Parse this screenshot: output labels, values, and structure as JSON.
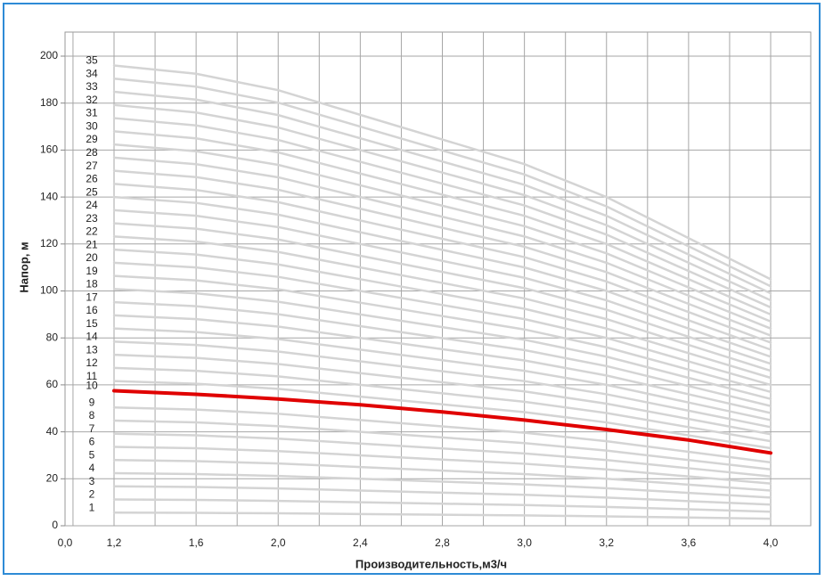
{
  "chart_data": {
    "type": "line",
    "x_label": "Производительность,м3/ч",
    "y_label": "Напор, м",
    "categories": [
      "0,0",
      "1,2",
      "1,6",
      "2,0",
      "2,4",
      "2,8",
      "3,0",
      "3,2",
      "3,6",
      "4,0"
    ],
    "ylim": [
      0,
      200
    ],
    "yticks": [
      0,
      20,
      40,
      60,
      80,
      100,
      120,
      140,
      160,
      180,
      200
    ],
    "grid": true,
    "series": [
      {
        "name": "1",
        "color": "#d4d4d4",
        "values": [
          null,
          5.6,
          5.5,
          5.3,
          5,
          4.7,
          4.4,
          4,
          3.5,
          3
        ]
      },
      {
        "name": "2",
        "color": "#d4d4d4",
        "values": [
          null,
          11.2,
          11,
          10.6,
          10,
          9.4,
          8.8,
          8,
          7,
          6
        ]
      },
      {
        "name": "3",
        "color": "#d4d4d4",
        "values": [
          null,
          16.8,
          16.5,
          15.9,
          15,
          14.1,
          13.2,
          12,
          10.5,
          9
        ]
      },
      {
        "name": "4",
        "color": "#d4d4d4",
        "values": [
          null,
          22.4,
          22,
          21.2,
          20,
          18.8,
          17.6,
          16,
          14,
          12
        ]
      },
      {
        "name": "5",
        "color": "#d4d4d4",
        "values": [
          null,
          28,
          27.5,
          26.5,
          25,
          23.5,
          22,
          20,
          17.5,
          15
        ]
      },
      {
        "name": "6",
        "color": "#d4d4d4",
        "values": [
          null,
          33.6,
          33,
          31.8,
          30,
          28.2,
          26.4,
          24,
          21,
          18
        ]
      },
      {
        "name": "7",
        "color": "#d4d4d4",
        "values": [
          null,
          39.2,
          38.5,
          37.1,
          35,
          32.9,
          30.8,
          28,
          24.5,
          21
        ]
      },
      {
        "name": "8",
        "color": "#d4d4d4",
        "values": [
          null,
          44.8,
          44,
          42.4,
          40,
          37.6,
          35.2,
          32,
          28,
          24
        ]
      },
      {
        "name": "9",
        "color": "#d4d4d4",
        "values": [
          null,
          50.4,
          49.5,
          47.7,
          45,
          42.3,
          39.6,
          36,
          31.5,
          27
        ]
      },
      {
        "name": "10",
        "color": "#e00000",
        "values": [
          null,
          57.5,
          56,
          54,
          51.5,
          48.5,
          45,
          41,
          36.5,
          31
        ]
      },
      {
        "name": "11",
        "color": "#d4d4d4",
        "values": [
          null,
          61.6,
          60.5,
          58.3,
          55,
          51.7,
          48.4,
          44,
          38.5,
          33
        ]
      },
      {
        "name": "12",
        "color": "#d4d4d4",
        "values": [
          null,
          67.2,
          66,
          63.6,
          60,
          56.4,
          52.8,
          48,
          42,
          36
        ]
      },
      {
        "name": "13",
        "color": "#d4d4d4",
        "values": [
          null,
          72.8,
          71.5,
          68.9,
          65,
          61.1,
          57.2,
          52,
          45.5,
          39
        ]
      },
      {
        "name": "14",
        "color": "#d4d4d4",
        "values": [
          null,
          78.4,
          77,
          74.2,
          70,
          65.8,
          61.6,
          56,
          49,
          42
        ]
      },
      {
        "name": "15",
        "color": "#d4d4d4",
        "values": [
          null,
          84,
          82.5,
          79.5,
          75,
          70.5,
          66,
          60,
          52.5,
          45
        ]
      },
      {
        "name": "16",
        "color": "#d4d4d4",
        "values": [
          null,
          89.6,
          88,
          84.8,
          80,
          75.2,
          70.4,
          64,
          56,
          48
        ]
      },
      {
        "name": "17",
        "color": "#d4d4d4",
        "values": [
          null,
          95.2,
          93.5,
          90.1,
          85,
          79.9,
          74.8,
          68,
          59.5,
          51
        ]
      },
      {
        "name": "18",
        "color": "#d4d4d4",
        "values": [
          null,
          100.8,
          99,
          95.4,
          90,
          84.6,
          79.2,
          72,
          63,
          54
        ]
      },
      {
        "name": "19",
        "color": "#d4d4d4",
        "values": [
          null,
          106.4,
          104.5,
          100.7,
          95,
          89.3,
          83.6,
          76,
          66.5,
          57
        ]
      },
      {
        "name": "20",
        "color": "#d4d4d4",
        "values": [
          null,
          112,
          110,
          106,
          100,
          94,
          88,
          80,
          70,
          60
        ]
      },
      {
        "name": "21",
        "color": "#d4d4d4",
        "values": [
          null,
          117.6,
          115.5,
          111.3,
          105,
          98.7,
          92.4,
          84,
          73.5,
          63
        ]
      },
      {
        "name": "22",
        "color": "#d4d4d4",
        "values": [
          null,
          123.2,
          121,
          116.6,
          110,
          103.4,
          96.8,
          88,
          77,
          66
        ]
      },
      {
        "name": "23",
        "color": "#d4d4d4",
        "values": [
          null,
          128.8,
          126.5,
          121.9,
          115,
          108.1,
          101.2,
          92,
          80.5,
          69
        ]
      },
      {
        "name": "24",
        "color": "#d4d4d4",
        "values": [
          null,
          134.4,
          132,
          127.2,
          120,
          112.8,
          105.6,
          96,
          84,
          72
        ]
      },
      {
        "name": "25",
        "color": "#d4d4d4",
        "values": [
          null,
          140,
          137.5,
          132.5,
          125,
          117.5,
          110,
          100,
          87.5,
          75
        ]
      },
      {
        "name": "26",
        "color": "#d4d4d4",
        "values": [
          null,
          145.6,
          143,
          137.8,
          130,
          122.2,
          114.4,
          104,
          91,
          78
        ]
      },
      {
        "name": "27",
        "color": "#d4d4d4",
        "values": [
          null,
          151.2,
          148.5,
          143.1,
          135,
          126.9,
          118.8,
          108,
          94.5,
          81
        ]
      },
      {
        "name": "28",
        "color": "#d4d4d4",
        "values": [
          null,
          156.8,
          154,
          148.4,
          140,
          131.6,
          123.2,
          112,
          98,
          84
        ]
      },
      {
        "name": "29",
        "color": "#d4d4d4",
        "values": [
          null,
          162.4,
          159.5,
          153.7,
          145,
          136.3,
          127.6,
          116,
          101.5,
          87
        ]
      },
      {
        "name": "30",
        "color": "#d4d4d4",
        "values": [
          null,
          168,
          165,
          159,
          150,
          141,
          132,
          120,
          105,
          90
        ]
      },
      {
        "name": "31",
        "color": "#d4d4d4",
        "values": [
          null,
          173.6,
          170.5,
          164.3,
          155,
          145.7,
          136.4,
          124,
          108.5,
          93
        ]
      },
      {
        "name": "32",
        "color": "#d4d4d4",
        "values": [
          null,
          179.2,
          176,
          169.6,
          160,
          150.4,
          140.8,
          128,
          112,
          96
        ]
      },
      {
        "name": "33",
        "color": "#d4d4d4",
        "values": [
          null,
          184.8,
          181.5,
          174.9,
          165,
          155.1,
          145.2,
          132,
          115.5,
          99
        ]
      },
      {
        "name": "34",
        "color": "#d4d4d4",
        "values": [
          null,
          190.4,
          187,
          180.2,
          170,
          159.8,
          149.6,
          136,
          119,
          102
        ]
      },
      {
        "name": "35",
        "color": "#d4d4d4",
        "values": [
          null,
          196,
          192.5,
          185.5,
          175,
          164.5,
          154,
          140,
          122.5,
          105
        ]
      }
    ]
  }
}
